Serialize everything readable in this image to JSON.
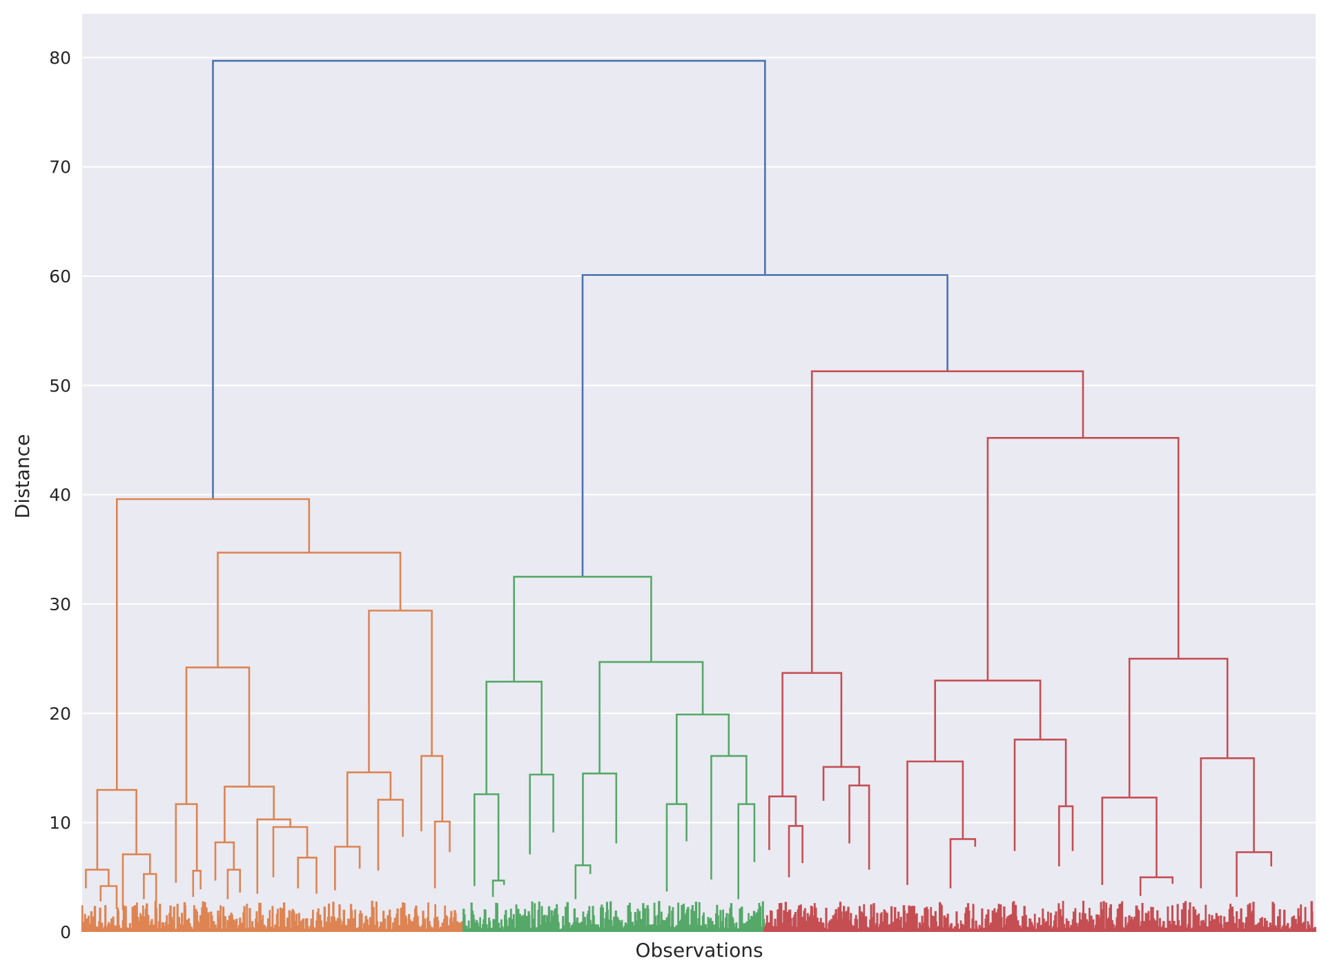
{
  "chart_data": {
    "type": "dendrogram",
    "xlabel": "Observations",
    "ylabel": "Distance",
    "ylim": [
      0,
      84
    ],
    "yticks": [
      0,
      10,
      20,
      30,
      40,
      50,
      60,
      70,
      80
    ],
    "grid": true,
    "leaf_labels_shown": false,
    "colors": {
      "background": "#EAEAF2",
      "grid": "#FFFFFF",
      "above_threshold": "#4C72B0",
      "cluster_1": "#DD8452",
      "cluster_2": "#55A868",
      "cluster_3": "#C44E52"
    },
    "clusters": [
      {
        "color_key": "cluster_1",
        "leaf_range": [
          0,
          30.9
        ]
      },
      {
        "color_key": "cluster_2",
        "leaf_range": [
          30.9,
          55.3
        ]
      },
      {
        "color_key": "cluster_3",
        "leaf_range": [
          55.3,
          100
        ]
      }
    ],
    "merges": [
      {
        "id": "root",
        "height": 79.7,
        "color_key": "above_threshold",
        "left": "A",
        "right": "B"
      },
      {
        "id": "B",
        "height": 60.1,
        "color_key": "above_threshold",
        "left": "G",
        "right": "R"
      },
      {
        "id": "A",
        "height": 39.6,
        "color_key": "cluster_1",
        "left": "A1",
        "right": "A2"
      },
      {
        "id": "A1",
        "height": 13.0,
        "color_key": "cluster_1",
        "left": "A1a",
        "right": "A1b"
      },
      {
        "id": "A1a",
        "height": 5.7,
        "color_key": "cluster_1",
        "left": [
          0.3,
          4.0
        ],
        "right": "A1a2"
      },
      {
        "id": "A1a2",
        "height": 4.2,
        "color_key": "cluster_1",
        "left": [
          1.5,
          2.8
        ],
        "right": [
          2.8,
          2.1
        ]
      },
      {
        "id": "A1b",
        "height": 7.1,
        "color_key": "cluster_1",
        "left": [
          3.3,
          2.0
        ],
        "right": "A1b2"
      },
      {
        "id": "A1b2",
        "height": 5.3,
        "color_key": "cluster_1",
        "left": [
          5.0,
          3.0
        ],
        "right": [
          6.0,
          2.5
        ]
      },
      {
        "id": "A2",
        "height": 34.7,
        "color_key": "cluster_1",
        "left": "A2L",
        "right": "A2R"
      },
      {
        "id": "A2L",
        "height": 24.2,
        "color_key": "cluster_1",
        "left": "A2La",
        "right": "A2Lb"
      },
      {
        "id": "A2La",
        "height": 11.7,
        "color_key": "cluster_1",
        "left": [
          7.6,
          4.5
        ],
        "right": "A2La2"
      },
      {
        "id": "A2La2",
        "height": 5.6,
        "color_key": "cluster_1",
        "left": [
          9.0,
          3.2
        ],
        "right": [
          9.6,
          3.9
        ]
      },
      {
        "id": "A2Lb",
        "height": 13.3,
        "color_key": "cluster_1",
        "left": "A2Lb1",
        "right": "A2Lb2"
      },
      {
        "id": "A2Lb1",
        "height": 8.2,
        "color_key": "cluster_1",
        "left": [
          10.8,
          4.7
        ],
        "right": "A2Lb1b"
      },
      {
        "id": "A2Lb1b",
        "height": 5.7,
        "color_key": "cluster_1",
        "left": [
          11.8,
          3.0
        ],
        "right": [
          12.8,
          3.6
        ]
      },
      {
        "id": "A2Lb2",
        "height": 10.3,
        "color_key": "cluster_1",
        "left": [
          14.2,
          3.5
        ],
        "right": "A2Lb2b"
      },
      {
        "id": "A2Lb2b",
        "height": 9.6,
        "color_key": "cluster_1",
        "left": [
          15.5,
          5.0
        ],
        "right": "A2Lb2c"
      },
      {
        "id": "A2Lb2c",
        "height": 6.8,
        "color_key": "cluster_1",
        "left": [
          17.5,
          4.0
        ],
        "right": [
          19.0,
          3.5
        ]
      },
      {
        "id": "A2R",
        "height": 29.4,
        "color_key": "cluster_1",
        "left": "A2Ra",
        "right": "A2Rb"
      },
      {
        "id": "A2Ra",
        "height": 14.6,
        "color_key": "cluster_1",
        "left": "A2Ra1",
        "right": "A2Ra2"
      },
      {
        "id": "A2Ra1",
        "height": 7.8,
        "color_key": "cluster_1",
        "left": [
          20.5,
          3.8
        ],
        "right": [
          22.5,
          5.8
        ]
      },
      {
        "id": "A2Ra2",
        "height": 12.1,
        "color_key": "cluster_1",
        "left": [
          24.0,
          5.6
        ],
        "right": [
          26.0,
          8.7
        ]
      },
      {
        "id": "A2Rb",
        "height": 16.1,
        "color_key": "cluster_1",
        "left": [
          27.5,
          9.2
        ],
        "right": "A2Rb2"
      },
      {
        "id": "A2Rb2",
        "height": 10.1,
        "color_key": "cluster_1",
        "left": [
          28.6,
          4.0
        ],
        "right": [
          29.8,
          7.3
        ]
      },
      {
        "id": "G",
        "height": 32.5,
        "color_key": "cluster_2",
        "left": "G1",
        "right": "G2"
      },
      {
        "id": "G1",
        "height": 22.9,
        "color_key": "cluster_2",
        "left": "G1a",
        "right": "G1b"
      },
      {
        "id": "G1a",
        "height": 12.6,
        "color_key": "cluster_2",
        "left": [
          31.8,
          4.2
        ],
        "right": "G1a2"
      },
      {
        "id": "G1a2",
        "height": 4.7,
        "color_key": "cluster_2",
        "left": [
          33.3,
          3.2
        ],
        "right": [
          34.2,
          4.3
        ]
      },
      {
        "id": "G1b",
        "height": 14.4,
        "color_key": "cluster_2",
        "left": [
          36.3,
          7.1
        ],
        "right": [
          38.2,
          9.1
        ]
      },
      {
        "id": "G2",
        "height": 24.7,
        "color_key": "cluster_2",
        "left": "G2a",
        "right": "G2b"
      },
      {
        "id": "G2a",
        "height": 14.5,
        "color_key": "cluster_2",
        "left": "G2a1",
        "right": [
          43.3,
          8.1
        ]
      },
      {
        "id": "G2a1",
        "height": 6.1,
        "color_key": "cluster_2",
        "left": [
          40.0,
          3.0
        ],
        "right": [
          41.2,
          5.3
        ]
      },
      {
        "id": "G2b",
        "height": 19.9,
        "color_key": "cluster_2",
        "left": "G2b1",
        "right": "G2b2"
      },
      {
        "id": "G2b1",
        "height": 11.7,
        "color_key": "cluster_2",
        "left": [
          47.4,
          3.7
        ],
        "right": [
          49.0,
          8.3
        ]
      },
      {
        "id": "G2b2",
        "height": 16.1,
        "color_key": "cluster_2",
        "left": [
          51.0,
          4.8
        ],
        "right": "G2b2b"
      },
      {
        "id": "G2b2b",
        "height": 11.7,
        "color_key": "cluster_2",
        "left": [
          53.2,
          3.0
        ],
        "right": [
          54.5,
          6.4
        ]
      },
      {
        "id": "R",
        "height": 51.3,
        "color_key": "cluster_3",
        "left": "R1",
        "right": "R2"
      },
      {
        "id": "R1",
        "height": 23.7,
        "color_key": "cluster_3",
        "left": "R1a",
        "right": "R1b"
      },
      {
        "id": "R1a",
        "height": 12.4,
        "color_key": "cluster_3",
        "left": [
          55.7,
          7.5
        ],
        "right": "R1a2"
      },
      {
        "id": "R1a2",
        "height": 9.7,
        "color_key": "cluster_3",
        "left": [
          57.3,
          5.0
        ],
        "right": [
          58.4,
          6.3
        ]
      },
      {
        "id": "R1b",
        "height": 15.1,
        "color_key": "cluster_3",
        "left": [
          60.1,
          12.0
        ],
        "right": "R1b2"
      },
      {
        "id": "R1b2",
        "height": 13.4,
        "color_key": "cluster_3",
        "left": [
          62.2,
          8.1
        ],
        "right": [
          63.8,
          5.7
        ]
      },
      {
        "id": "R2",
        "height": 45.2,
        "color_key": "cluster_3",
        "left": "R2L",
        "right": "R2R"
      },
      {
        "id": "R2L",
        "height": 23.0,
        "color_key": "cluster_3",
        "left": "R2La",
        "right": "R2Lb"
      },
      {
        "id": "R2La",
        "height": 15.6,
        "color_key": "cluster_3",
        "left": [
          66.9,
          4.3
        ],
        "right": "R2La2"
      },
      {
        "id": "R2La2",
        "height": 8.5,
        "color_key": "cluster_3",
        "left": [
          70.4,
          4.0
        ],
        "right": [
          72.4,
          7.8
        ]
      },
      {
        "id": "R2Lb",
        "height": 17.6,
        "color_key": "cluster_3",
        "left": [
          75.6,
          7.4
        ],
        "right": "R2Lb2"
      },
      {
        "id": "R2Lb2",
        "height": 11.5,
        "color_key": "cluster_3",
        "left": [
          79.2,
          6.0
        ],
        "right": [
          80.3,
          7.4
        ]
      },
      {
        "id": "R2R",
        "height": 25.0,
        "color_key": "cluster_3",
        "left": "R2Ra",
        "right": "R2Rb"
      },
      {
        "id": "R2Ra",
        "height": 12.3,
        "color_key": "cluster_3",
        "left": [
          82.7,
          4.3
        ],
        "right": "R2Ra2"
      },
      {
        "id": "R2Ra2",
        "height": 5.0,
        "color_key": "cluster_3",
        "left": [
          85.8,
          3.3
        ],
        "right": [
          88.4,
          4.4
        ]
      },
      {
        "id": "R2Rb",
        "height": 15.9,
        "color_key": "cluster_3",
        "left": [
          90.7,
          4.0
        ],
        "right": "R2Rb2"
      },
      {
        "id": "R2Rb2",
        "height": 7.3,
        "color_key": "cluster_3",
        "left": [
          93.6,
          3.2
        ],
        "right": [
          96.4,
          6.0
        ]
      }
    ]
  }
}
